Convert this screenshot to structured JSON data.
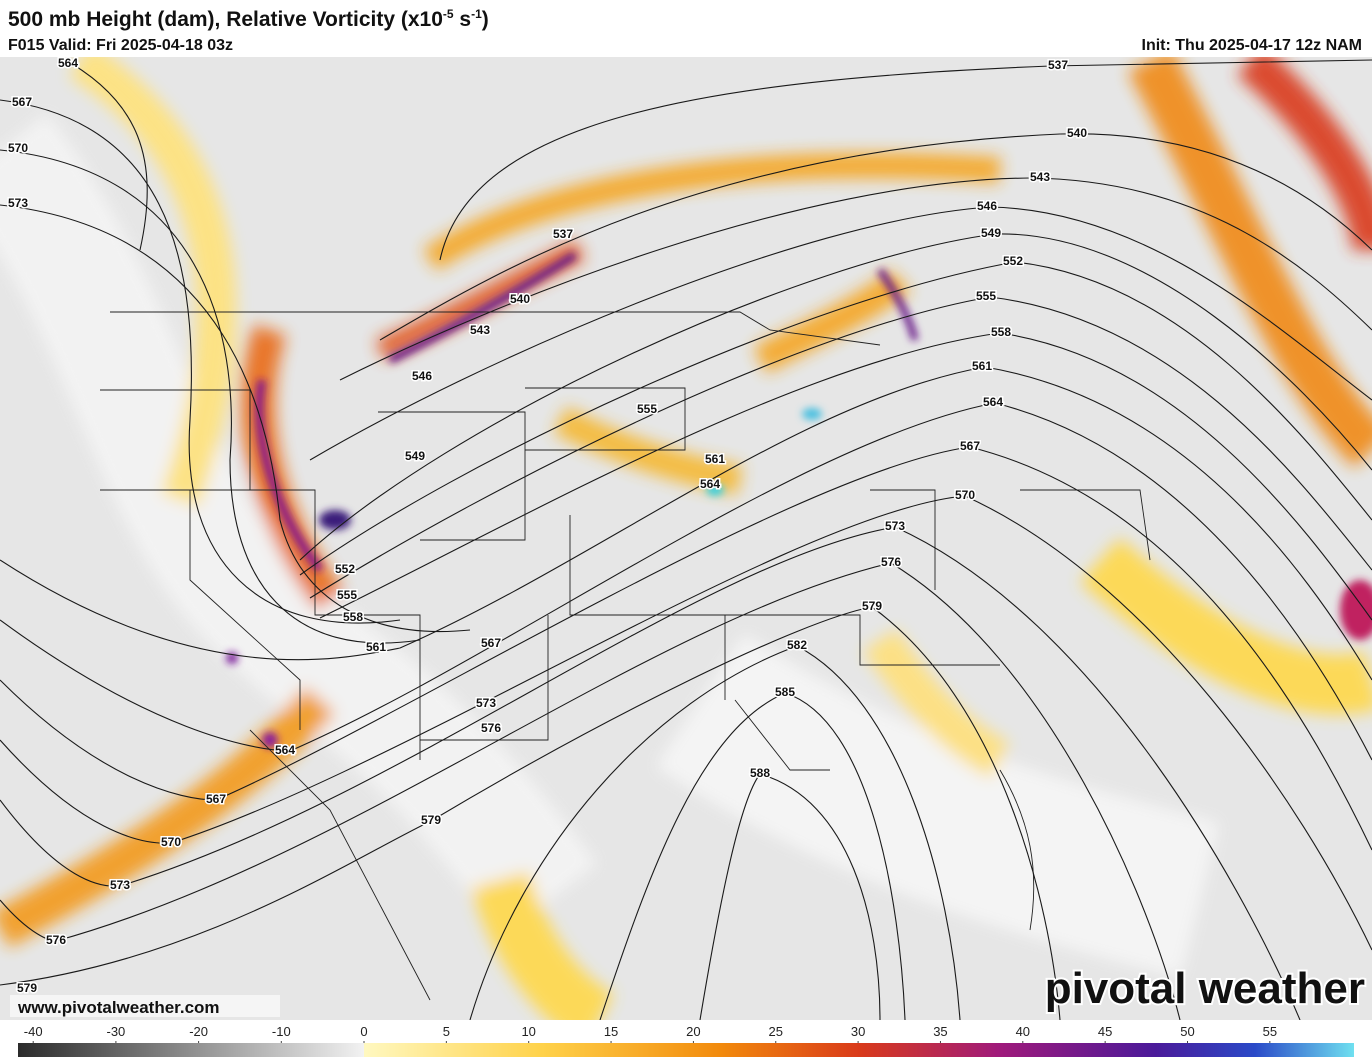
{
  "header": {
    "title_parts": [
      "500 mb Height (dam), Relative Vorticity (x10",
      "-5",
      " s",
      "-1",
      ")"
    ],
    "valid": "F015 Valid: Fri 2025-04-18 03z",
    "init": "Init: Thu 2025-04-17 12z NAM"
  },
  "contour_labels": [
    564,
    567,
    570,
    573,
    537,
    540,
    543,
    546,
    549,
    552,
    555,
    558,
    561,
    564,
    567,
    570,
    573,
    576,
    579,
    579,
    576,
    573,
    567,
    555,
    561,
    564,
    537,
    540,
    543,
    546,
    549,
    552,
    555,
    558,
    561,
    564,
    567,
    570,
    573,
    576,
    579,
    582,
    585,
    588
  ],
  "colorbar": {
    "ticks": [
      -40,
      -30,
      -20,
      -10,
      0,
      5,
      10,
      15,
      20,
      25,
      30,
      35,
      40,
      45,
      50,
      55
    ]
  },
  "footer": {
    "url": "www.pivotalweather.com",
    "logo": "pivotal weather"
  }
}
